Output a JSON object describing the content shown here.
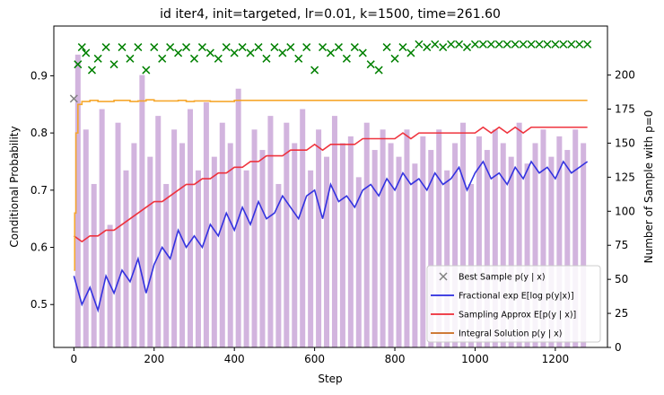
{
  "chart_data": {
    "type": "line",
    "title": "id iter4, init=targeted, lr=0.01, k=1500, time=261.60",
    "xlabel": "Step",
    "ylabel": "Conditional Probability",
    "ylabel_right": "Number of Sample with p=0",
    "xlim": [
      -50,
      1330
    ],
    "ylim": [
      0.425,
      0.987
    ],
    "ylim_right": [
      0,
      236
    ],
    "xticks": [
      0,
      200,
      400,
      600,
      800,
      1000,
      1200
    ],
    "yticks": [
      0.5,
      0.6,
      0.7,
      0.8,
      0.9
    ],
    "yticks_right": [
      0,
      25,
      50,
      75,
      100,
      125,
      150,
      175,
      200
    ],
    "grid": false,
    "legend_position": "lower-right",
    "colors": {
      "best_sample": "#008000",
      "fractional": "#2a2adf",
      "sampling": "#ee2a35",
      "integral": "#f5a323",
      "zero_count": "#9b59b6"
    },
    "series": [
      {
        "name": "Best Sample $p(y\\mid x)$",
        "legend": "Best Sample p(y | x)",
        "kind": "scatter-x",
        "x": [
          0,
          10,
          20,
          30,
          45,
          60,
          80,
          100,
          120,
          140,
          160,
          180,
          200,
          220,
          240,
          260,
          280,
          300,
          320,
          340,
          360,
          380,
          400,
          420,
          440,
          460,
          480,
          500,
          520,
          540,
          560,
          580,
          600,
          620,
          640,
          660,
          680,
          700,
          720,
          740,
          760,
          780,
          800,
          820,
          840,
          860,
          880,
          900,
          920,
          940,
          960,
          980,
          1000,
          1020,
          1040,
          1060,
          1080,
          1100,
          1120,
          1140,
          1160,
          1180,
          1200,
          1220,
          1240,
          1260,
          1280
        ],
        "y": [
          0.86,
          0.92,
          0.95,
          0.94,
          0.91,
          0.93,
          0.95,
          0.92,
          0.95,
          0.93,
          0.95,
          0.91,
          0.95,
          0.93,
          0.95,
          0.94,
          0.95,
          0.93,
          0.95,
          0.94,
          0.93,
          0.95,
          0.94,
          0.95,
          0.94,
          0.95,
          0.93,
          0.95,
          0.94,
          0.95,
          0.93,
          0.95,
          0.91,
          0.95,
          0.94,
          0.95,
          0.93,
          0.95,
          0.94,
          0.92,
          0.91,
          0.95,
          0.93,
          0.95,
          0.94,
          0.955,
          0.95,
          0.955,
          0.95,
          0.955,
          0.955,
          0.95,
          0.955,
          0.955,
          0.955,
          0.955,
          0.955,
          0.955,
          0.955,
          0.955,
          0.955,
          0.955,
          0.955,
          0.955,
          0.955,
          0.955,
          0.955
        ]
      },
      {
        "name": "Fractional $\\exp\\mathbb{E}[\\log p(y|x)]$",
        "legend": "Fractional exp E[log p(y|x)]",
        "kind": "line",
        "x": [
          0,
          20,
          40,
          60,
          80,
          100,
          120,
          140,
          160,
          180,
          200,
          220,
          240,
          260,
          280,
          300,
          320,
          340,
          360,
          380,
          400,
          420,
          440,
          460,
          480,
          500,
          520,
          540,
          560,
          580,
          600,
          620,
          640,
          660,
          680,
          700,
          720,
          740,
          760,
          780,
          800,
          820,
          840,
          860,
          880,
          900,
          920,
          940,
          960,
          980,
          1000,
          1020,
          1040,
          1060,
          1080,
          1100,
          1120,
          1140,
          1160,
          1180,
          1200,
          1220,
          1240,
          1260,
          1280
        ],
        "y": [
          0.55,
          0.5,
          0.53,
          0.49,
          0.55,
          0.52,
          0.56,
          0.54,
          0.58,
          0.52,
          0.57,
          0.6,
          0.58,
          0.63,
          0.6,
          0.62,
          0.6,
          0.64,
          0.62,
          0.66,
          0.63,
          0.67,
          0.64,
          0.68,
          0.65,
          0.66,
          0.69,
          0.67,
          0.65,
          0.69,
          0.7,
          0.65,
          0.71,
          0.68,
          0.69,
          0.67,
          0.7,
          0.71,
          0.69,
          0.72,
          0.7,
          0.73,
          0.71,
          0.72,
          0.7,
          0.73,
          0.71,
          0.72,
          0.74,
          0.7,
          0.73,
          0.75,
          0.72,
          0.73,
          0.71,
          0.74,
          0.72,
          0.75,
          0.73,
          0.74,
          0.72,
          0.75,
          0.73,
          0.74,
          0.75
        ]
      },
      {
        "name": "Sampling Approx $E[p(y\\mid x)]$",
        "legend": "Sampling Approx E[p(y | x)]",
        "kind": "line",
        "x": [
          0,
          20,
          40,
          60,
          80,
          100,
          120,
          140,
          160,
          180,
          200,
          220,
          240,
          260,
          280,
          300,
          320,
          340,
          360,
          380,
          400,
          420,
          440,
          460,
          480,
          500,
          520,
          540,
          560,
          580,
          600,
          620,
          640,
          660,
          680,
          700,
          720,
          740,
          760,
          780,
          800,
          820,
          840,
          860,
          880,
          900,
          920,
          940,
          960,
          980,
          1000,
          1020,
          1040,
          1060,
          1080,
          1100,
          1120,
          1140,
          1160,
          1180,
          1200,
          1220,
          1240,
          1260,
          1280
        ],
        "y": [
          0.62,
          0.61,
          0.62,
          0.62,
          0.63,
          0.63,
          0.64,
          0.65,
          0.66,
          0.67,
          0.68,
          0.68,
          0.69,
          0.7,
          0.71,
          0.71,
          0.72,
          0.72,
          0.73,
          0.73,
          0.74,
          0.74,
          0.75,
          0.75,
          0.76,
          0.76,
          0.76,
          0.77,
          0.77,
          0.77,
          0.78,
          0.77,
          0.78,
          0.78,
          0.78,
          0.78,
          0.79,
          0.79,
          0.79,
          0.79,
          0.79,
          0.8,
          0.79,
          0.8,
          0.8,
          0.8,
          0.8,
          0.8,
          0.8,
          0.8,
          0.8,
          0.81,
          0.8,
          0.81,
          0.8,
          0.81,
          0.8,
          0.81,
          0.81,
          0.81,
          0.81,
          0.81,
          0.81,
          0.81,
          0.81
        ]
      },
      {
        "name": "Integral Solution $p(y\\mid x)$",
        "legend": "Integral Solution p(y | x)",
        "kind": "step",
        "x": [
          0,
          2,
          5,
          10,
          20,
          40,
          60,
          100,
          140,
          160,
          180,
          200,
          260,
          280,
          300,
          340,
          400,
          500,
          600,
          700,
          800,
          900,
          1000,
          1100,
          1200,
          1280
        ],
        "y": [
          0.56,
          0.66,
          0.8,
          0.85,
          0.855,
          0.857,
          0.855,
          0.857,
          0.855,
          0.856,
          0.858,
          0.856,
          0.857,
          0.855,
          0.856,
          0.855,
          0.857,
          0.857,
          0.857,
          0.857,
          0.857,
          0.857,
          0.857,
          0.857,
          0.857,
          0.857
        ]
      },
      {
        "name": "Number of Sample with p=0",
        "kind": "bars",
        "axis": "right",
        "x": [
          10,
          30,
          50,
          70,
          90,
          110,
          130,
          150,
          170,
          190,
          210,
          230,
          250,
          270,
          290,
          310,
          330,
          350,
          370,
          390,
          410,
          430,
          450,
          470,
          490,
          510,
          530,
          550,
          570,
          590,
          610,
          630,
          650,
          670,
          690,
          710,
          730,
          750,
          770,
          790,
          810,
          830,
          850,
          870,
          890,
          910,
          930,
          950,
          970,
          990,
          1010,
          1030,
          1050,
          1070,
          1090,
          1110,
          1130,
          1150,
          1170,
          1190,
          1210,
          1230,
          1250,
          1270
        ],
        "y": [
          215,
          160,
          120,
          175,
          90,
          165,
          130,
          150,
          200,
          140,
          170,
          120,
          160,
          150,
          175,
          130,
          180,
          140,
          165,
          150,
          190,
          130,
          160,
          145,
          170,
          120,
          165,
          150,
          175,
          130,
          160,
          140,
          170,
          150,
          155,
          125,
          165,
          145,
          160,
          150,
          140,
          160,
          135,
          155,
          145,
          160,
          130,
          150,
          165,
          120,
          155,
          145,
          160,
          150,
          140,
          165,
          135,
          150,
          160,
          140,
          155,
          145,
          160,
          150
        ]
      }
    ]
  }
}
